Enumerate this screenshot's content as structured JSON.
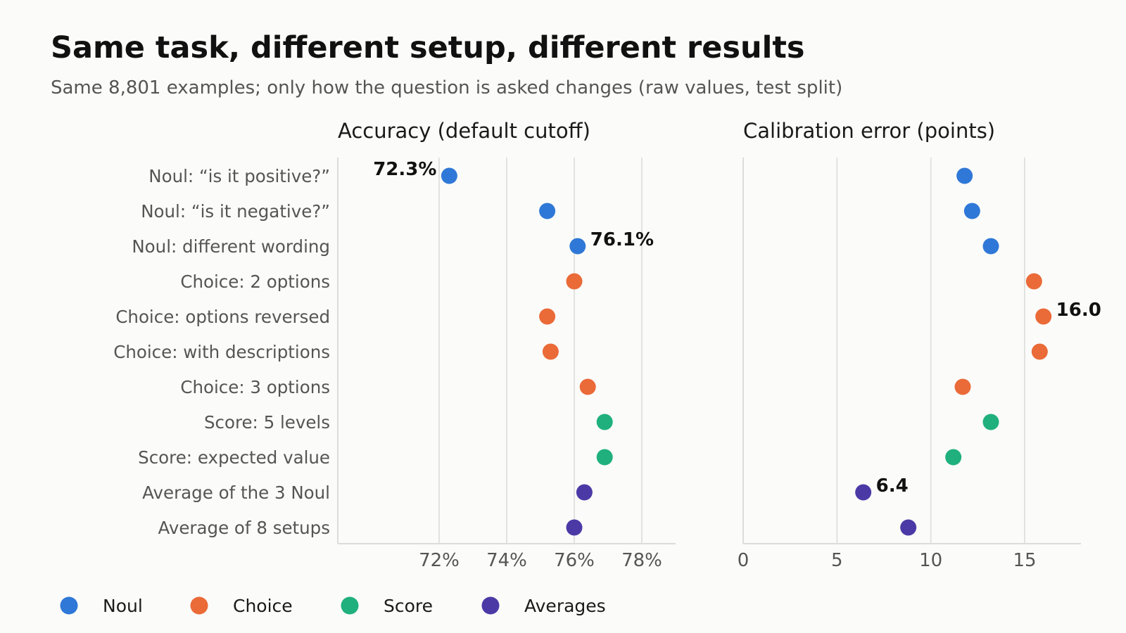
{
  "title": "Same task, different setup, different results",
  "subtitle": "Same 8,801 examples; only how the question is asked changes (raw values, test split)",
  "chart_data": {
    "type": "scatter",
    "categories": [
      "Noul: “is it positive?”",
      "Noul: “is it negative?”",
      "Noul: different wording",
      "Choice: 2 options",
      "Choice: options reversed",
      "Choice: with descriptions",
      "Choice: 3 options",
      "Score: 5 levels",
      "Score: expected value",
      "Average of the 3 Noul",
      "Average of 8 setups"
    ],
    "groups": [
      "Noul",
      "Noul",
      "Noul",
      "Choice",
      "Choice",
      "Choice",
      "Choice",
      "Score",
      "Score",
      "Averages",
      "Averages"
    ],
    "group_colors": {
      "Noul": "#2f78d7",
      "Choice": "#ea6a38",
      "Score": "#1fb07e",
      "Averages": "#4b3aa6"
    },
    "legend": [
      "Noul",
      "Choice",
      "Score",
      "Averages"
    ],
    "legend_position": "bottom-left",
    "panels": [
      {
        "title": "Accuracy (default cutoff)",
        "values": [
          72.3,
          75.2,
          76.1,
          76.0,
          75.2,
          75.3,
          76.4,
          76.9,
          76.9,
          76.3,
          76.0
        ],
        "xlim": [
          69.0,
          79.0
        ],
        "ticks": [
          72,
          74,
          76,
          78
        ],
        "tick_labels": [
          "72%",
          "74%",
          "76%",
          "78%"
        ],
        "grid": true,
        "annotations": [
          {
            "index": 0,
            "text": "72.3%",
            "side": "left"
          },
          {
            "index": 2,
            "text": "76.1%",
            "side": "right"
          }
        ]
      },
      {
        "title": "Calibration error (points)",
        "values": [
          11.8,
          12.2,
          13.2,
          15.5,
          16.0,
          15.8,
          11.7,
          13.2,
          11.2,
          6.4,
          8.8
        ],
        "xlim": [
          0,
          18
        ],
        "ticks": [
          0,
          5,
          10,
          15
        ],
        "tick_labels": [
          "0",
          "5",
          "10",
          "15"
        ],
        "grid": true,
        "annotations": [
          {
            "index": 4,
            "text": "16.0",
            "side": "right"
          },
          {
            "index": 9,
            "text": "6.4",
            "side": "right"
          }
        ]
      }
    ]
  }
}
